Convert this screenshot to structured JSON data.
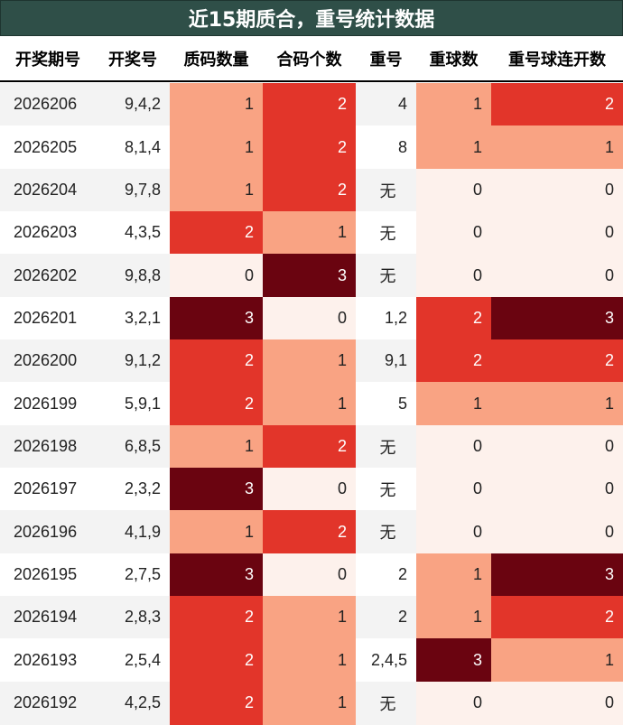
{
  "title": "近15期质合，重号统计数据",
  "chart_data": {
    "type": "table",
    "columns": [
      "开奖期号",
      "开奖号",
      "质码数量",
      "合码个数",
      "重号",
      "重球数",
      "重号球连开数"
    ],
    "heat_columns": [
      2,
      3,
      5,
      6
    ],
    "heat_colors": {
      "0": "#fdf1ec",
      "1": "#f9a383",
      "2": "#e2352a",
      "3": "#6a0410"
    },
    "rows": [
      [
        "2026206",
        "9,4,2",
        1,
        2,
        "4",
        1,
        2
      ],
      [
        "2026205",
        "8,1,4",
        1,
        2,
        "8",
        1,
        1
      ],
      [
        "2026204",
        "9,7,8",
        1,
        2,
        "无",
        0,
        0
      ],
      [
        "2026203",
        "4,3,5",
        2,
        1,
        "无",
        0,
        0
      ],
      [
        "2026202",
        "9,8,8",
        0,
        3,
        "无",
        0,
        0
      ],
      [
        "2026201",
        "3,2,1",
        3,
        0,
        "1,2",
        2,
        3
      ],
      [
        "2026200",
        "9,1,2",
        2,
        1,
        "9,1",
        2,
        2
      ],
      [
        "2026199",
        "5,9,1",
        2,
        1,
        "5",
        1,
        1
      ],
      [
        "2026198",
        "6,8,5",
        1,
        2,
        "无",
        0,
        0
      ],
      [
        "2026197",
        "2,3,2",
        3,
        0,
        "无",
        0,
        0
      ],
      [
        "2026196",
        "4,1,9",
        1,
        2,
        "无",
        0,
        0
      ],
      [
        "2026195",
        "2,7,5",
        3,
        0,
        "2",
        1,
        3
      ],
      [
        "2026194",
        "2,8,3",
        2,
        1,
        "2",
        1,
        2
      ],
      [
        "2026193",
        "2,5,4",
        2,
        1,
        "2,4,5",
        3,
        1
      ],
      [
        "2026192",
        "4,2,5",
        2,
        1,
        "无",
        0,
        0
      ]
    ]
  }
}
